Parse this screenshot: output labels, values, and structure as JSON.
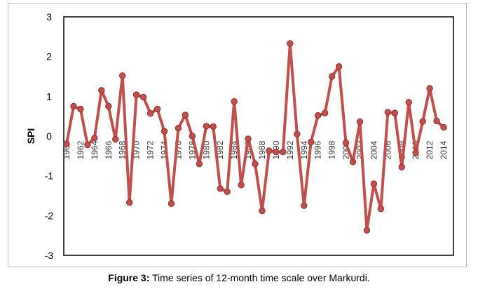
{
  "caption": {
    "label": "Figure 3:",
    "text": " Time series of 12-month time scale over Markurdi."
  },
  "chart_data": {
    "type": "line",
    "title": "",
    "xlabel": "",
    "ylabel": "SPI",
    "ylim": [
      -3,
      3
    ],
    "yticks": [
      -3,
      -2,
      -1,
      0,
      1,
      2,
      3
    ],
    "xlim": [
      1960,
      2015
    ],
    "xticks": [
      1960,
      1962,
      1964,
      1966,
      1968,
      1970,
      1972,
      1974,
      1976,
      1978,
      1980,
      1982,
      1984,
      1986,
      1988,
      1990,
      1992,
      1994,
      1996,
      1998,
      2000,
      2002,
      2004,
      2006,
      2008,
      2010,
      2012,
      2014
    ],
    "grid": false,
    "legend": "none",
    "series_color": "#c0504d",
    "series": [
      {
        "x": [
          1960,
          1961,
          1962,
          1963,
          1964,
          1965,
          1966,
          1967,
          1968,
          1969,
          1970,
          1971,
          1972,
          1973,
          1974,
          1975,
          1976,
          1977,
          1978,
          1979,
          1980,
          1981,
          1982,
          1983,
          1984,
          1985,
          1986,
          1987,
          1988,
          1989,
          1990,
          1991,
          1992,
          1993,
          1994,
          1995,
          1996,
          1997,
          1998,
          1999,
          2000,
          2001,
          2002,
          2003,
          2004,
          2005,
          2006,
          2007,
          2008,
          2009,
          2010,
          2011,
          2012,
          2013,
          2014
        ],
        "values": [
          -0.2,
          0.75,
          0.68,
          -0.22,
          -0.05,
          1.15,
          0.75,
          -0.08,
          1.52,
          -1.67,
          1.04,
          0.98,
          0.57,
          0.68,
          0.12,
          -1.7,
          0.2,
          0.53,
          0.0,
          -0.7,
          0.25,
          0.24,
          -1.32,
          -1.4,
          0.87,
          -1.23,
          -0.07,
          -0.7,
          -1.88,
          -0.37,
          -0.4,
          -0.4,
          2.33,
          0.05,
          -1.75,
          -0.15,
          0.52,
          0.58,
          1.5,
          1.75,
          -0.17,
          -0.65,
          0.36,
          -2.37,
          -1.2,
          -1.83,
          0.6,
          0.58,
          -0.78,
          0.85,
          -0.42,
          0.37,
          1.2,
          0.38,
          0.22
        ]
      }
    ]
  }
}
